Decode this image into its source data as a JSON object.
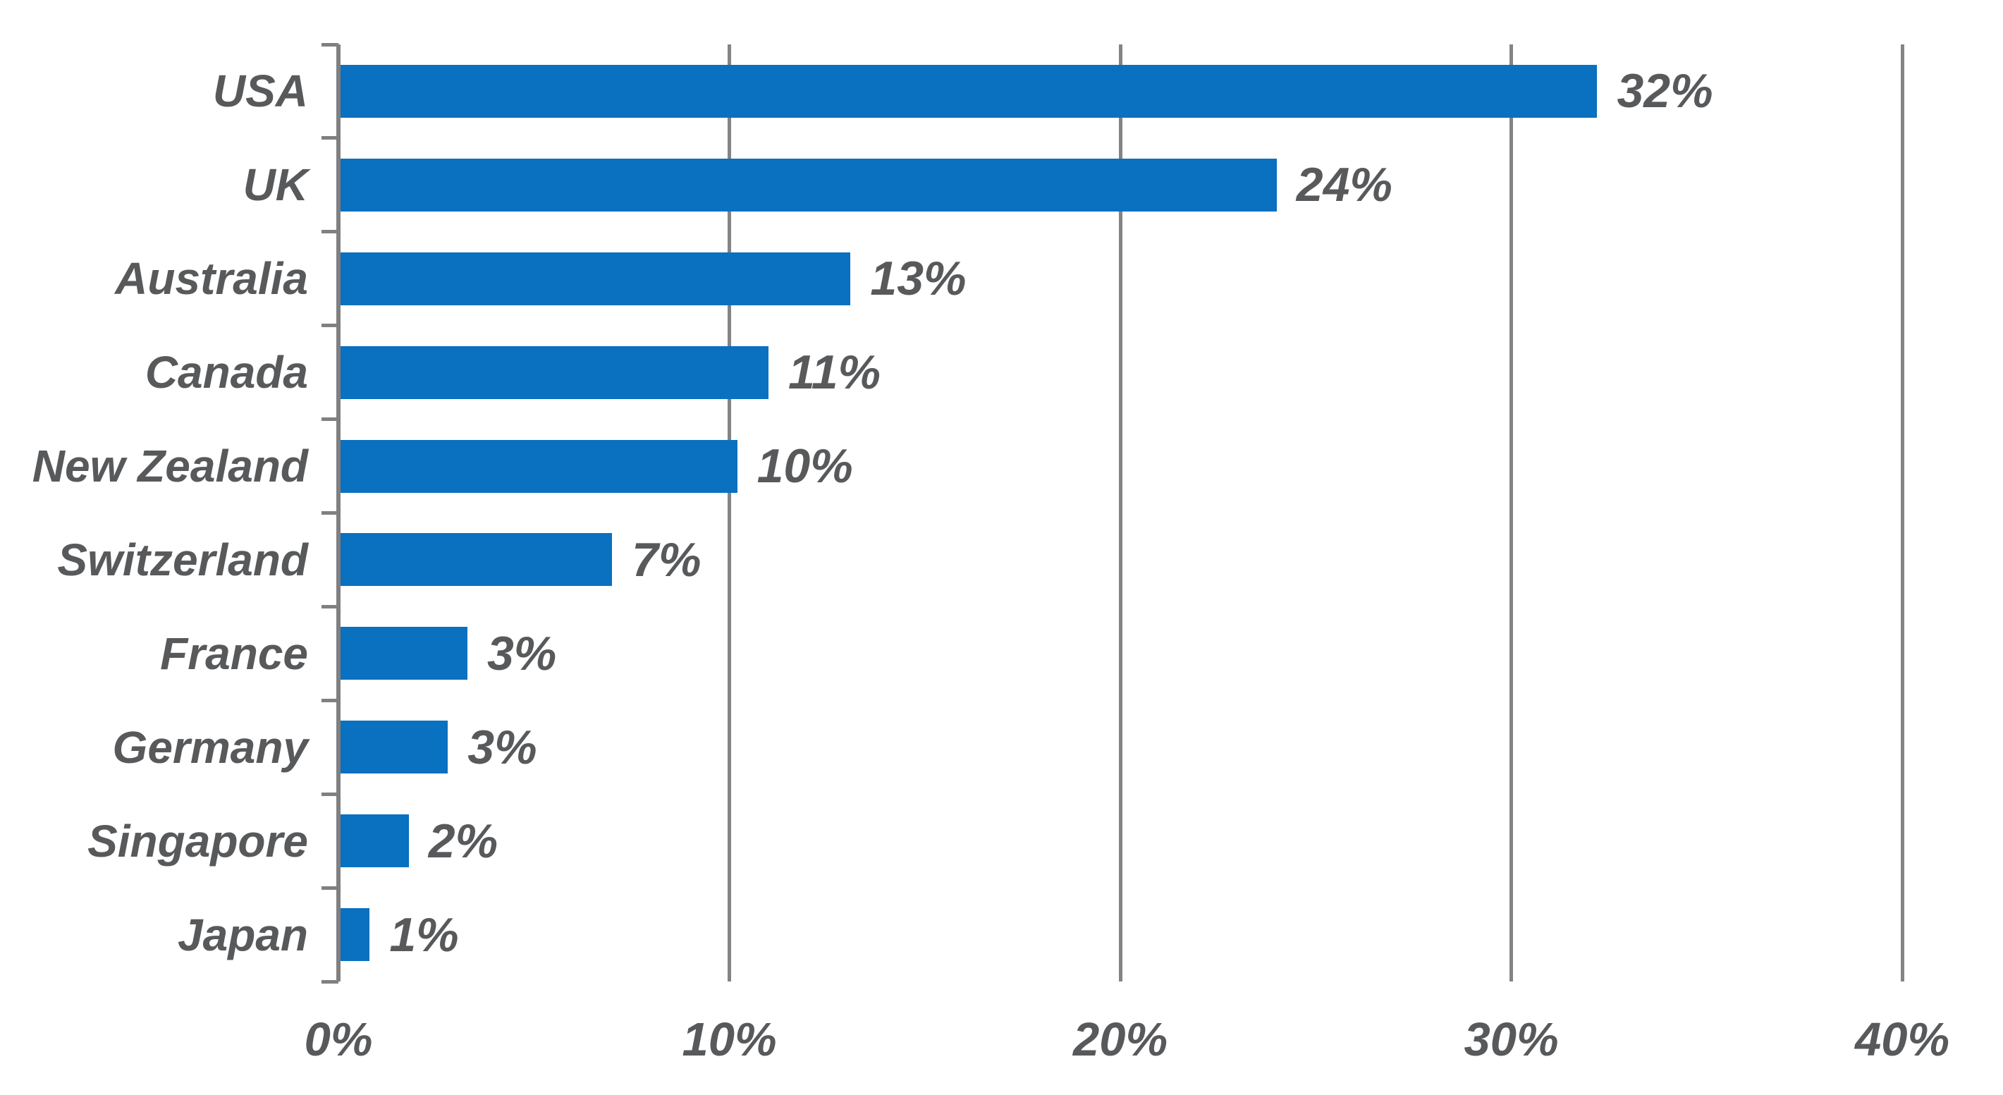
{
  "chart_data": {
    "type": "bar",
    "orientation": "horizontal",
    "title": "",
    "xlabel": "",
    "ylabel": "",
    "categories": [
      "USA",
      "UK",
      "Australia",
      "Canada",
      "New Zealand",
      "Switzerland",
      "France",
      "Germany",
      "Singapore",
      "Japan"
    ],
    "values": [
      32,
      24,
      13,
      11,
      10,
      7,
      3,
      3,
      2,
      1
    ],
    "value_labels": [
      "32%",
      "24%",
      "13%",
      "11%",
      "10%",
      "7%",
      "3%",
      "3%",
      "2%",
      "1%"
    ],
    "bar_render_pcts": [
      32.2,
      24.0,
      13.1,
      11.0,
      10.2,
      7.0,
      3.3,
      2.8,
      1.8,
      0.8
    ],
    "x_axis": {
      "tick_labels": [
        "0%",
        "10%",
        "20%",
        "30%",
        "40%"
      ],
      "tick_values": [
        0,
        10,
        20,
        30,
        40
      ],
      "min": 0,
      "max": 40
    },
    "grid": "vertical-only",
    "legend": false,
    "colors": {
      "bar": "#0A70C0",
      "gridline": "#848484",
      "axis": "#808080",
      "text": "#58595B",
      "background": "#FFFFFF"
    }
  }
}
